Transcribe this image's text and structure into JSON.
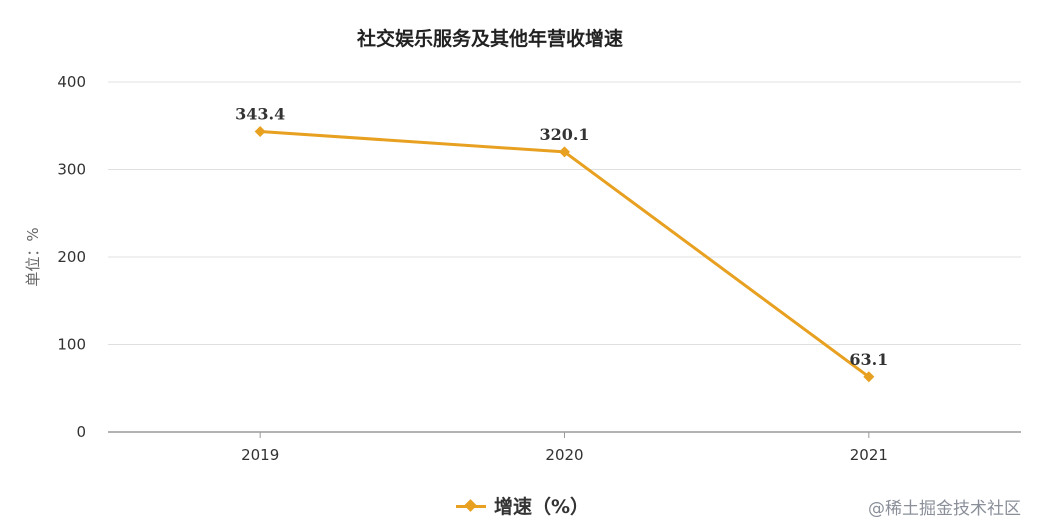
{
  "chart_data": {
    "type": "line",
    "title": "社交娱乐服务及其他年营收增速",
    "ylabel": "单位：%",
    "xlabel": "",
    "categories": [
      "2019",
      "2020",
      "2021"
    ],
    "series": [
      {
        "name": "增速（%）",
        "values": [
          343.4,
          320.1,
          63.1
        ],
        "color": "#E8A020"
      }
    ],
    "yticks": [
      "0",
      "100",
      "200",
      "300",
      "400"
    ],
    "ylim": [
      0,
      400
    ],
    "grid": true,
    "legend": "bottom",
    "data_labels": [
      "343.4",
      "320.1",
      "63.1"
    ]
  },
  "watermark": "@稀土掘金技术社区"
}
